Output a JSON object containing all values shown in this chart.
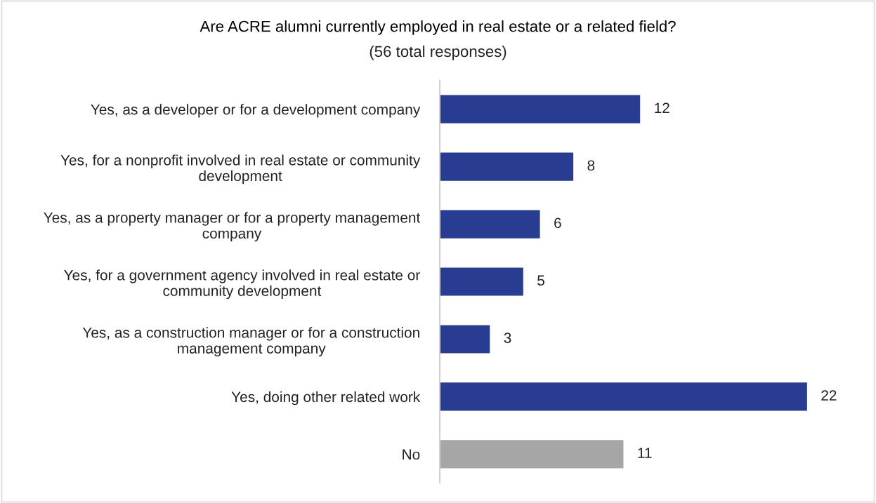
{
  "chart_data": {
    "type": "bar",
    "orientation": "horizontal",
    "title": "Are ACRE alumni currently employed in real estate or a related field?",
    "subtitle": "(56 total responses)",
    "categories": [
      "Yes, as a developer or for a development company",
      "Yes, for a nonprofit involved in real estate or community\ndevelopment",
      "Yes, as a property manager or for a property management\ncompany",
      "Yes, for a government agency involved in real estate or\ncommunity development",
      "Yes, as a construction manager or for a construction\nmanagement company",
      "Yes, doing other related work",
      "No"
    ],
    "values": [
      12,
      8,
      6,
      5,
      3,
      22,
      11
    ],
    "colors": [
      "#283d91",
      "#283d91",
      "#283d91",
      "#283d91",
      "#283d91",
      "#283d91",
      "#a6a6a6"
    ],
    "data_labels": true,
    "grid": false,
    "legend": false,
    "tick_labels": "y"
  }
}
